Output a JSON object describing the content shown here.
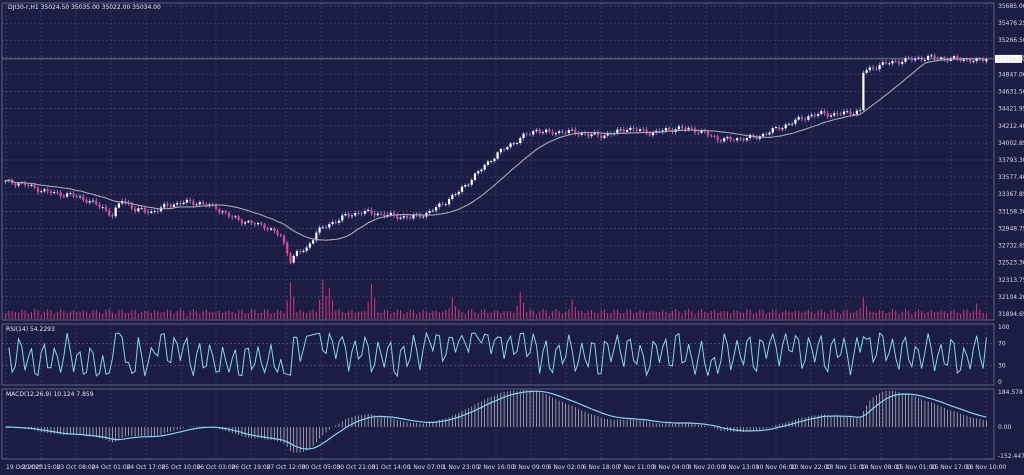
{
  "chart_data": {
    "type": "candlestick",
    "header": {
      "symbol_label": "DJI30-r,H1",
      "ohlc_label": "35024.50 35035.00 35022.00 35034.00",
      "last_price": "35034.00"
    },
    "price_axis": {
      "ticks": [
        "35685.00",
        "35476.25",
        "35266.50",
        "35056.75",
        "34847.00",
        "34631.50",
        "34421.95",
        "34212.40",
        "34002.85",
        "33793.30",
        "33577.40",
        "33367.85",
        "33158.30",
        "32948.75",
        "32732.85",
        "32523.30",
        "32313.75",
        "32104.20",
        "31894.65"
      ],
      "ylim": [
        31894.65,
        35685.0
      ]
    },
    "time_axis": {
      "ticks": [
        "19 Oct 2023",
        "20 Oct 15:00",
        "23 Oct 08:00",
        "24 Oct 01:00",
        "24 Oct 17:00",
        "25 Oct 10:00",
        "26 Oct 03:00",
        "26 Oct 19:00",
        "27 Oct 12:00",
        "30 Oct 05:00",
        "30 Oct 21:00",
        "31 Oct 14:00",
        "1 Nov 07:00",
        "1 Nov 23:00",
        "2 Nov 16:00",
        "3 Nov 09:00",
        "6 Nov 02:00",
        "6 Nov 18:00",
        "7 Nov 11:00",
        "8 Nov 04:00",
        "8 Nov 20:00",
        "9 Nov 13:00",
        "10 Nov 06:00",
        "10 Nov 22:00",
        "13 Nov 15:00",
        "14 Nov 08:00",
        "15 Nov 01:00",
        "15 Nov 17:00",
        "16 Nov 10:00"
      ]
    },
    "close_anchors": [
      [
        0,
        33520
      ],
      [
        5,
        33500
      ],
      [
        10,
        33430
      ],
      [
        15,
        33380
      ],
      [
        20,
        33360
      ],
      [
        25,
        33300
      ],
      [
        30,
        33200
      ],
      [
        33,
        33110
      ],
      [
        36,
        33300
      ],
      [
        40,
        33180
      ],
      [
        45,
        33150
      ],
      [
        50,
        33230
      ],
      [
        55,
        33270
      ],
      [
        60,
        33260
      ],
      [
        65,
        33200
      ],
      [
        70,
        33080
      ],
      [
        75,
        33020
      ],
      [
        80,
        32980
      ],
      [
        85,
        32850
      ],
      [
        88,
        32560
      ],
      [
        90,
        32640
      ],
      [
        93,
        32700
      ],
      [
        96,
        32900
      ],
      [
        100,
        33000
      ],
      [
        105,
        33100
      ],
      [
        110,
        33150
      ],
      [
        115,
        33130
      ],
      [
        120,
        33100
      ],
      [
        125,
        33080
      ],
      [
        130,
        33130
      ],
      [
        133,
        33200
      ],
      [
        136,
        33280
      ],
      [
        140,
        33400
      ],
      [
        145,
        33600
      ],
      [
        150,
        33800
      ],
      [
        153,
        33900
      ],
      [
        156,
        33980
      ],
      [
        160,
        34080
      ],
      [
        164,
        34160
      ],
      [
        168,
        34120
      ],
      [
        172,
        34140
      ],
      [
        176,
        34130
      ],
      [
        180,
        34100
      ],
      [
        184,
        34090
      ],
      [
        188,
        34120
      ],
      [
        192,
        34180
      ],
      [
        196,
        34150
      ],
      [
        200,
        34120
      ],
      [
        204,
        34160
      ],
      [
        208,
        34180
      ],
      [
        212,
        34170
      ],
      [
        216,
        34120
      ],
      [
        220,
        34050
      ],
      [
        224,
        34040
      ],
      [
        228,
        34060
      ],
      [
        232,
        34070
      ],
      [
        236,
        34140
      ],
      [
        240,
        34200
      ],
      [
        244,
        34270
      ],
      [
        248,
        34330
      ],
      [
        252,
        34360
      ],
      [
        256,
        34350
      ],
      [
        260,
        34370
      ],
      [
        264,
        34390
      ],
      [
        265,
        34870
      ],
      [
        270,
        34960
      ],
      [
        275,
        35000
      ],
      [
        280,
        35030
      ],
      [
        285,
        35050
      ],
      [
        290,
        35040
      ],
      [
        295,
        35030
      ],
      [
        300,
        35010
      ],
      [
        303,
        35034
      ]
    ],
    "ma_period": 20,
    "volume": {
      "baseline_note": "",
      "spikes": [
        [
          88,
          0.95
        ],
        [
          98,
          1.0
        ],
        [
          100,
          0.8
        ],
        [
          113,
          0.9
        ],
        [
          138,
          0.55
        ],
        [
          159,
          0.7
        ],
        [
          175,
          0.5
        ],
        [
          265,
          0.55
        ],
        [
          300,
          0.4
        ]
      ]
    },
    "rsi": {
      "label": "RSI(14) 54.2293",
      "period": 14,
      "ticks": [
        "100",
        "70",
        "30",
        "0"
      ],
      "levels": [
        70,
        30
      ]
    },
    "macd": {
      "label": "MACD(12,26,9) 10.124 7.859",
      "ticks": [
        "184.578",
        "0.00",
        "-152.447"
      ],
      "ylim": [
        -152.447,
        184.578
      ],
      "zero": 0
    },
    "colors": {
      "background": "#1b1d45",
      "grid": "#8a8db0",
      "bull": "#ffffff",
      "bear": "#ff3a8c",
      "wick": "#8aa8ff",
      "ma": "#a8a8b8",
      "indicator_line": "#7fd8ee",
      "volume": "#d9347a",
      "histogram": "#c8c8d2",
      "text": "#d8d8e6"
    }
  }
}
